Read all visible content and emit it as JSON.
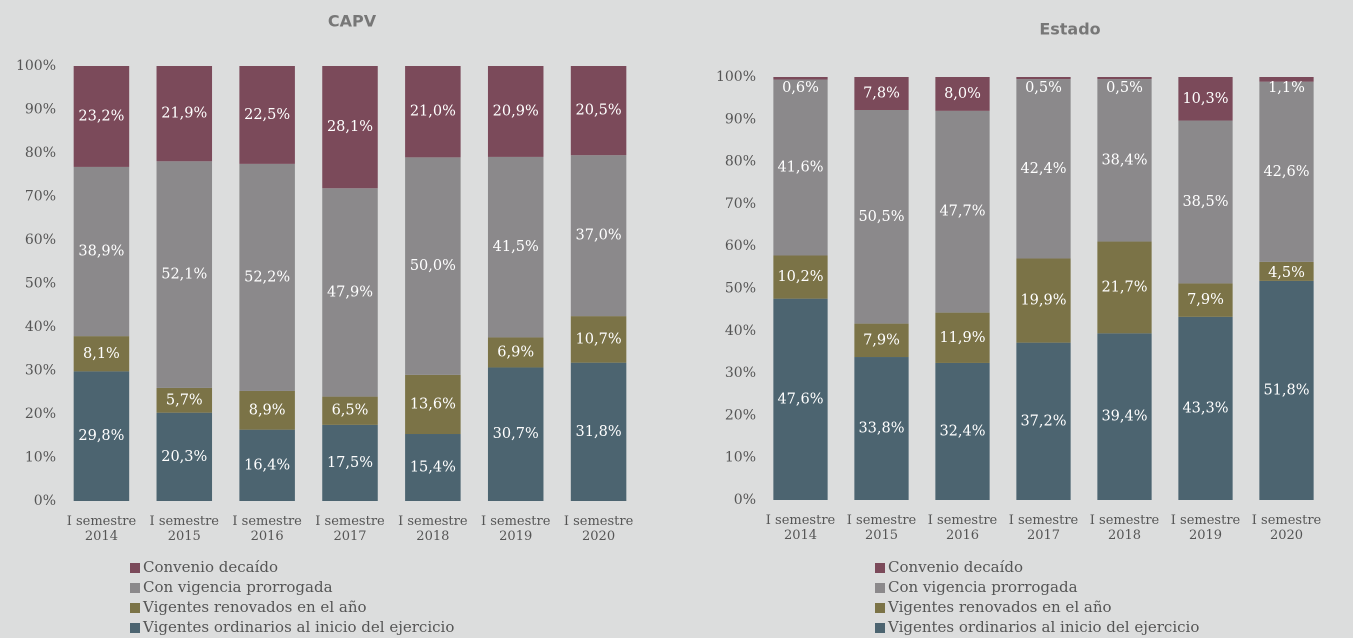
{
  "chart_data": [
    {
      "type": "stacked_bar",
      "title": "CAPV",
      "categories": [
        "I semestre 2014",
        "I semestre 2015",
        "I semestre 2016",
        "I semestre 2017",
        "I semestre 2018",
        "I semestre 2019",
        "I semestre 2020"
      ],
      "ylim": [
        0,
        100
      ],
      "yticks": [
        {
          "value": 0,
          "label": "0%"
        },
        {
          "value": 10,
          "label": "10%"
        },
        {
          "value": 20,
          "label": "20%"
        },
        {
          "value": 30,
          "label": "30%"
        },
        {
          "value": 40,
          "label": "40%"
        },
        {
          "value": 50,
          "label": "50%"
        },
        {
          "value": 60,
          "label": "60%"
        },
        {
          "value": 70,
          "label": "70%"
        },
        {
          "value": 80,
          "label": "80%"
        },
        {
          "value": 90,
          "label": "90%"
        },
        {
          "value": 100,
          "label": "100%"
        }
      ],
      "series": [
        {
          "name": "Convenio decaído",
          "color": "#7b4a5a",
          "values": [
            23.2,
            21.9,
            22.5,
            28.1,
            21.0,
            20.9,
            20.5
          ],
          "value_labels": [
            "23,2%",
            "21,9%",
            "22,5%",
            "28,1%",
            "21,0%",
            "20,9%",
            "20,5%"
          ]
        },
        {
          "name": "Con vigencia prorrogada",
          "color": "#8b898b",
          "values": [
            38.9,
            52.1,
            52.2,
            47.9,
            50.0,
            41.5,
            37.0
          ],
          "value_labels": [
            "38,9%",
            "52,1%",
            "52,2%",
            "47,9%",
            "50,0%",
            "41,5%",
            "37,0%"
          ]
        },
        {
          "name": "Vigentes renovados en el año",
          "color": "#7b7347",
          "values": [
            8.1,
            5.7,
            8.9,
            6.5,
            13.6,
            6.9,
            10.7
          ],
          "value_labels": [
            "8,1%",
            "5,7%",
            "8,9%",
            "6,5%",
            "13,6%",
            "6,9%",
            "10,7%"
          ]
        },
        {
          "name": "Vigentes ordinarios al inicio del ejercicio",
          "color": "#4c6470",
          "values": [
            29.8,
            20.3,
            16.4,
            17.5,
            15.4,
            30.7,
            31.8
          ],
          "value_labels": [
            "29,8%",
            "20,3%",
            "16,4%",
            "17,5%",
            "15,4%",
            "30,7%",
            "31,8%"
          ]
        }
      ]
    },
    {
      "type": "stacked_bar",
      "title": "Estado",
      "categories": [
        "I semestre 2014",
        "I semestre 2015",
        "I semestre 2016",
        "I semestre 2017",
        "I semestre 2018",
        "I semestre 2019",
        "I semestre 2020"
      ],
      "ylim": [
        0,
        100
      ],
      "yticks": [
        {
          "value": 0,
          "label": "0%"
        },
        {
          "value": 10,
          "label": "10%"
        },
        {
          "value": 20,
          "label": "20%"
        },
        {
          "value": 30,
          "label": "30%"
        },
        {
          "value": 40,
          "label": "40%"
        },
        {
          "value": 50,
          "label": "50%"
        },
        {
          "value": 60,
          "label": "60%"
        },
        {
          "value": 70,
          "label": "70%"
        },
        {
          "value": 80,
          "label": "80%"
        },
        {
          "value": 90,
          "label": "90%"
        },
        {
          "value": 100,
          "label": "100%"
        }
      ],
      "series": [
        {
          "name": "Convenio decaído",
          "color": "#7b4a5a",
          "values": [
            0.6,
            7.8,
            8.0,
            0.5,
            0.5,
            10.3,
            1.1
          ],
          "value_labels": [
            "0,6%",
            "7,8%",
            "8,0%",
            "0,5%",
            "0,5%",
            "10,3%",
            "1,1%"
          ]
        },
        {
          "name": "Con vigencia prorrogada",
          "color": "#8b898b",
          "values": [
            41.6,
            50.5,
            47.7,
            42.4,
            38.4,
            38.5,
            42.6
          ],
          "value_labels": [
            "41,6%",
            "50,5%",
            "47,7%",
            "42,4%",
            "38,4%",
            "38,5%",
            "42,6%"
          ]
        },
        {
          "name": "Vigentes renovados en el año",
          "color": "#7b7347",
          "values": [
            10.2,
            7.9,
            11.9,
            19.9,
            21.7,
            7.9,
            4.5
          ],
          "value_labels": [
            "10,2%",
            "7,9%",
            "11,9%",
            "19,9%",
            "21,7%",
            "7,9%",
            "4,5%"
          ]
        },
        {
          "name": "Vigentes ordinarios al inicio del ejercicio",
          "color": "#4c6470",
          "values": [
            47.6,
            33.8,
            32.4,
            37.2,
            39.4,
            43.3,
            51.8
          ],
          "value_labels": [
            "47,6%",
            "33,8%",
            "32,4%",
            "37,2%",
            "39,4%",
            "43,3%",
            "51,8%"
          ]
        }
      ]
    }
  ]
}
